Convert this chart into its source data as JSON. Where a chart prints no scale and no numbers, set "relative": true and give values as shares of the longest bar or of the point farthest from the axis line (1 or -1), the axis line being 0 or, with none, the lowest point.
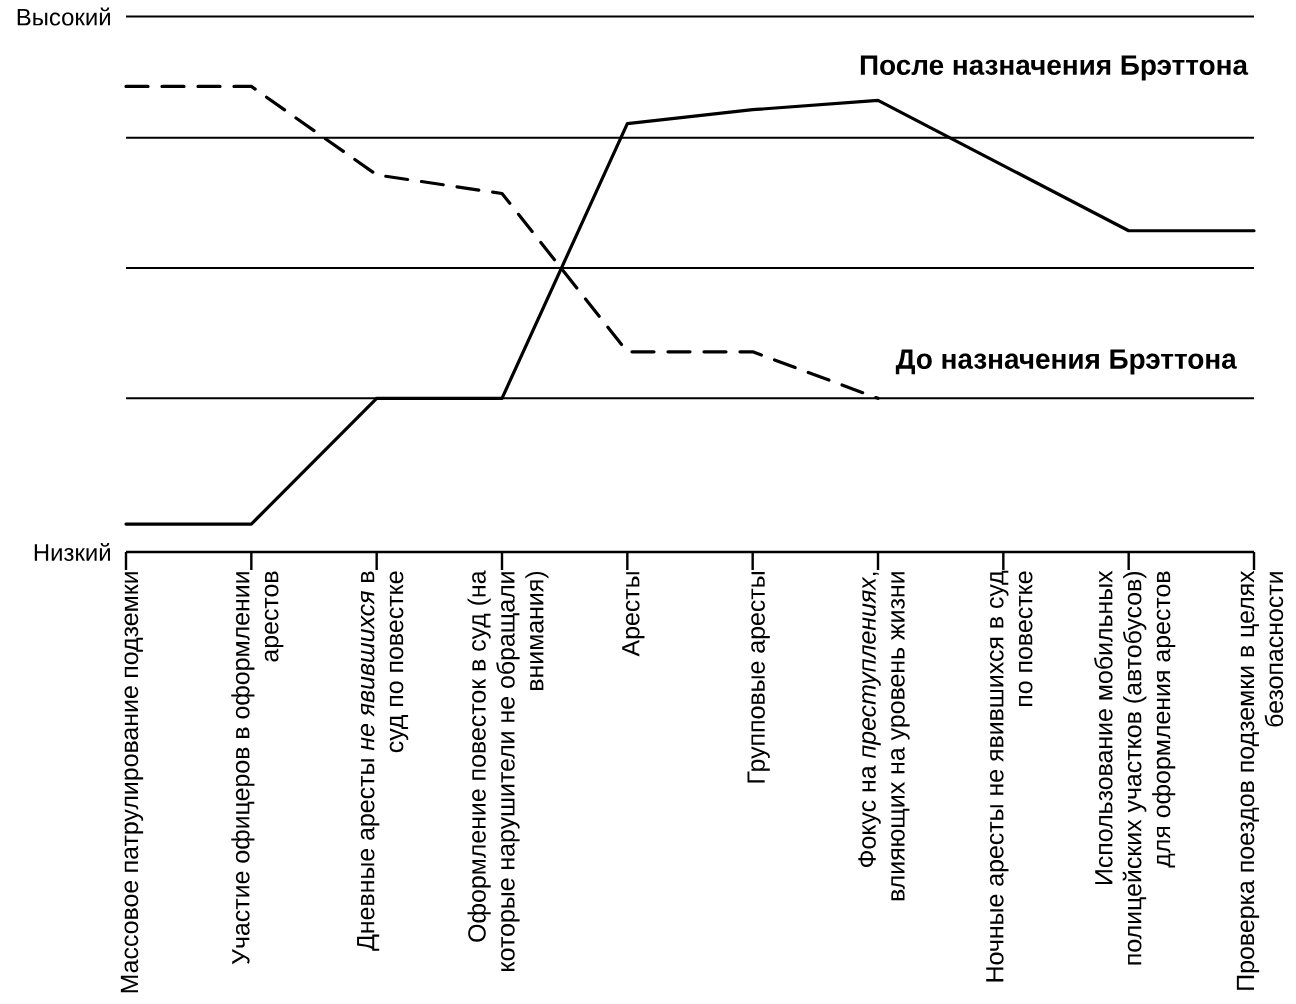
{
  "chart_data": {
    "type": "line",
    "relative": true,
    "categories": [
      "Массовое патрулирование подземки",
      "Участие офицеров в оформлении арестов",
      "Дневные аресты *не явившихся* в суд по повестке",
      "Оформление повесток в суд (на которые нарушители не обращали внимания)",
      "Аресты",
      "Групповые аресты",
      "Фокус на *преступлениях*, влияющих на уровень жизни",
      "Ночные аресты не явившихся в суд по повестке",
      "Использование мобильных полицейских участков (автобусов) для оформления арестов",
      "Проверка поездов подземки в целях безопасности"
    ],
    "ref_lines": [
      {
        "axis": "y",
        "value": 1.15,
        "label": "Высокий"
      },
      {
        "axis": "y",
        "value": 0.89
      },
      {
        "axis": "y",
        "value": 0.61
      },
      {
        "axis": "y",
        "value": 0.33
      }
    ],
    "annotations": [
      "Низкий"
    ],
    "series": [
      {
        "name": "После назначения Брэттона",
        "color": "#000000",
        "line_style": "solid",
        "values": [
          0.06,
          0.06,
          0.33,
          0.33,
          0.92,
          0.95,
          0.97,
          0.83,
          0.69,
          0.69
        ]
      },
      {
        "name": "До назначения Брэттона",
        "color": "#000000",
        "line_style": "dashed",
        "values": [
          1,
          1,
          0.81,
          0.77,
          0.43,
          0.43,
          0.33,
          null,
          null,
          null
        ]
      }
    ]
  }
}
